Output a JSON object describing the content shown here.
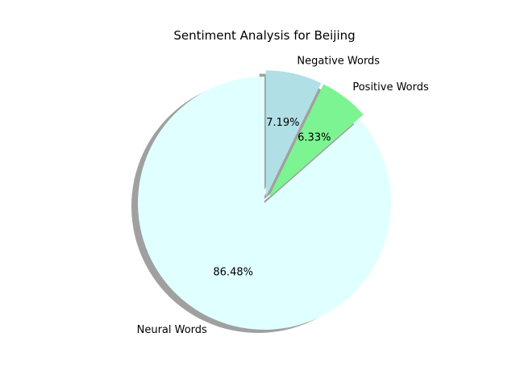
{
  "chart_data": {
    "type": "pie",
    "title": "Sentiment Analysis for Beijing",
    "start_angle_deg": 90,
    "direction": "counterclockwise",
    "shadow": true,
    "slices": [
      {
        "label": "Neural Words",
        "value": 86.48,
        "pct_label": "86.48%",
        "color": "#e0ffff",
        "exploded": false
      },
      {
        "label": "Positive Words",
        "value": 6.33,
        "pct_label": "6.33%",
        "color": "#7cf491",
        "exploded": true
      },
      {
        "label": "Negative Words",
        "value": 7.19,
        "pct_label": "7.19%",
        "color": "#b0e0e6",
        "exploded": true
      }
    ]
  }
}
